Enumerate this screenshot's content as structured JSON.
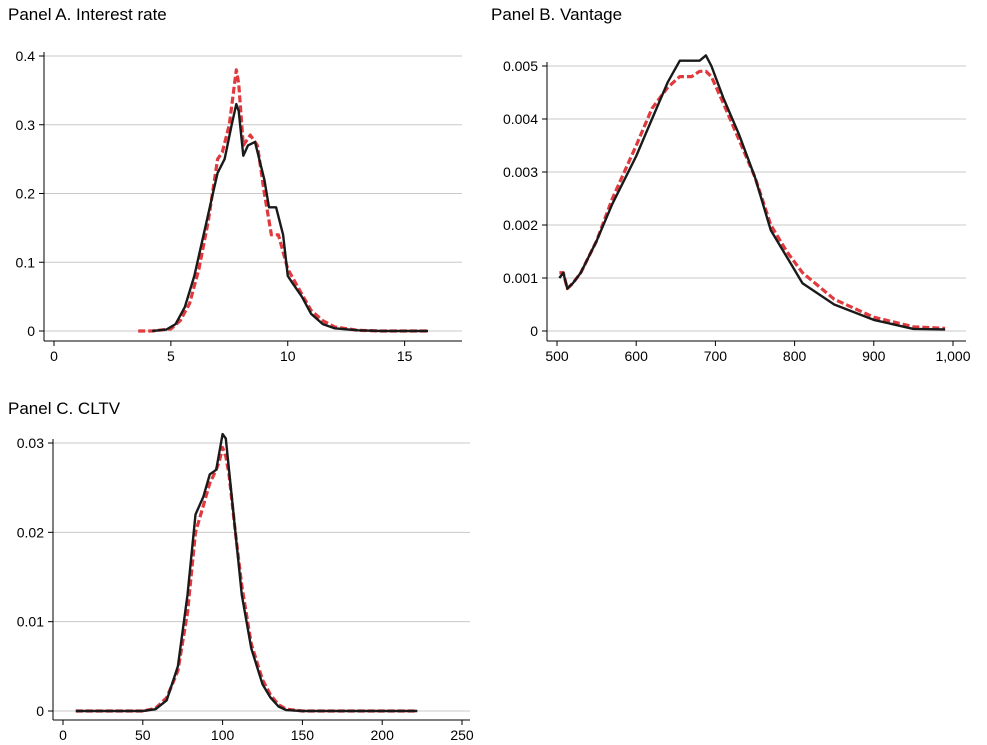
{
  "colors": {
    "solid_series": "#1a1a1a",
    "dashed_series": "#e0393e",
    "grid": "#c8c8c8",
    "axis": "#000000"
  },
  "chart_data": [
    {
      "type": "line",
      "title": "Panel A. Interest rate",
      "xlabel": "",
      "ylabel": "",
      "xlim": [
        0,
        16
      ],
      "ylim": [
        0,
        0.4
      ],
      "x_ticks": [
        0,
        5,
        10,
        15
      ],
      "x_tick_labels": [
        "0",
        "5",
        "10",
        "15"
      ],
      "y_ticks": [
        0,
        0.1,
        0.2,
        0.3,
        0.4
      ],
      "y_tick_labels": [
        "0",
        "0.1",
        "0.2",
        "0.3",
        "0.4"
      ],
      "grid": "horizontal",
      "legend": "none",
      "series": [
        {
          "style": "solid",
          "x": [
            4.2,
            4.8,
            5.2,
            5.6,
            6.0,
            6.4,
            6.8,
            7.0,
            7.3,
            7.6,
            7.8,
            7.9,
            8.1,
            8.3,
            8.6,
            9.0,
            9.2,
            9.5,
            9.8,
            10.0,
            10.2,
            10.6,
            11.0,
            11.5,
            12.0,
            13.0,
            14.0,
            15.0,
            16.0
          ],
          "y": [
            0.0,
            0.002,
            0.01,
            0.035,
            0.08,
            0.14,
            0.2,
            0.23,
            0.25,
            0.3,
            0.33,
            0.32,
            0.255,
            0.27,
            0.275,
            0.22,
            0.18,
            0.18,
            0.14,
            0.08,
            0.07,
            0.05,
            0.025,
            0.01,
            0.004,
            0.001,
            0.0,
            0.0,
            0.0
          ]
        },
        {
          "style": "dashed",
          "x": [
            3.6,
            4.2,
            5.0,
            5.4,
            5.8,
            6.2,
            6.6,
            7.0,
            7.2,
            7.5,
            7.8,
            7.9,
            8.1,
            8.4,
            8.7,
            9.0,
            9.3,
            9.6,
            10.0,
            10.5,
            11.0,
            11.5,
            12.0,
            13.0,
            14.0,
            15.0,
            16.0
          ],
          "y": [
            0.0,
            0.0,
            0.003,
            0.015,
            0.04,
            0.09,
            0.16,
            0.25,
            0.26,
            0.3,
            0.38,
            0.36,
            0.27,
            0.285,
            0.27,
            0.2,
            0.14,
            0.14,
            0.09,
            0.06,
            0.03,
            0.015,
            0.006,
            0.001,
            0.0,
            0.0,
            0.0
          ]
        }
      ]
    },
    {
      "type": "line",
      "title": "Panel B. Vantage",
      "xlabel": "",
      "ylabel": "",
      "xlim": [
        500,
        1000
      ],
      "ylim": [
        0,
        0.005
      ],
      "x_ticks": [
        500,
        600,
        700,
        800,
        900,
        1000
      ],
      "x_tick_labels": [
        "500",
        "600",
        "700",
        "800",
        "900",
        "1,000"
      ],
      "y_ticks": [
        0,
        0.001,
        0.002,
        0.003,
        0.004,
        0.005
      ],
      "y_tick_labels": [
        "0",
        "0.001",
        "0.002",
        "0.003",
        "0.004",
        "0.005"
      ],
      "grid": "horizontal",
      "legend": "none",
      "series": [
        {
          "style": "solid",
          "x": [
            503,
            508,
            513,
            520,
            530,
            550,
            570,
            600,
            620,
            640,
            655,
            665,
            680,
            688,
            695,
            710,
            730,
            750,
            770,
            790,
            810,
            850,
            900,
            950,
            990
          ],
          "y": [
            0.001,
            0.0011,
            0.0008,
            0.0009,
            0.0011,
            0.0017,
            0.0024,
            0.0033,
            0.004,
            0.0047,
            0.0051,
            0.0051,
            0.0051,
            0.0052,
            0.005,
            0.0044,
            0.0037,
            0.0029,
            0.0019,
            0.0014,
            0.0009,
            0.0005,
            0.00021,
            4e-05,
            3e-05
          ]
        },
        {
          "style": "dashed",
          "x": [
            503,
            508,
            513,
            520,
            530,
            550,
            570,
            600,
            620,
            640,
            655,
            670,
            680,
            688,
            695,
            710,
            730,
            750,
            770,
            790,
            810,
            850,
            900,
            950,
            990
          ],
          "y": [
            0.0011,
            0.0011,
            0.0008,
            0.0009,
            0.0011,
            0.0017,
            0.0025,
            0.0035,
            0.0042,
            0.0046,
            0.0048,
            0.0048,
            0.0049,
            0.0049,
            0.0048,
            0.0043,
            0.0036,
            0.0029,
            0.002,
            0.0015,
            0.0011,
            0.0006,
            0.00026,
            8e-05,
            5e-05
          ]
        }
      ]
    },
    {
      "type": "line",
      "title": "Panel C. CLTV",
      "xlabel": "",
      "ylabel": "",
      "xlim": [
        0,
        250
      ],
      "ylim": [
        0,
        0.03
      ],
      "x_ticks": [
        0,
        50,
        100,
        150,
        200,
        250
      ],
      "x_tick_labels": [
        "0",
        "50",
        "100",
        "150",
        "200",
        "250"
      ],
      "y_ticks": [
        0,
        0.01,
        0.02,
        0.03
      ],
      "y_tick_labels": [
        "0",
        "0.01",
        "0.02",
        "0.03"
      ],
      "grid": "horizontal",
      "legend": "none",
      "series": [
        {
          "style": "solid",
          "x": [
            8,
            30,
            50,
            58,
            65,
            72,
            78,
            83,
            88,
            92,
            96,
            98,
            100,
            102,
            104,
            108,
            112,
            118,
            125,
            130,
            135,
            140,
            150,
            180,
            222
          ],
          "y": [
            0.0,
            0.0,
            0.0,
            0.0002,
            0.0012,
            0.005,
            0.013,
            0.022,
            0.024,
            0.0265,
            0.027,
            0.029,
            0.031,
            0.0305,
            0.027,
            0.02,
            0.013,
            0.007,
            0.003,
            0.0015,
            0.0005,
            0.0001,
            0.0,
            0.0,
            0.0
          ]
        },
        {
          "style": "dashed",
          "x": [
            8,
            30,
            50,
            58,
            65,
            72,
            78,
            83,
            88,
            92,
            96,
            98,
            100,
            102,
            104,
            108,
            112,
            118,
            125,
            130,
            135,
            140,
            150,
            180,
            222
          ],
          "y": [
            0.0,
            0.0,
            0.0,
            0.0003,
            0.0015,
            0.0045,
            0.011,
            0.02,
            0.023,
            0.0255,
            0.027,
            0.028,
            0.0295,
            0.0285,
            0.0265,
            0.02,
            0.014,
            0.0075,
            0.0035,
            0.0018,
            0.0007,
            0.0002,
            0.0,
            0.0,
            0.0
          ]
        }
      ]
    }
  ]
}
